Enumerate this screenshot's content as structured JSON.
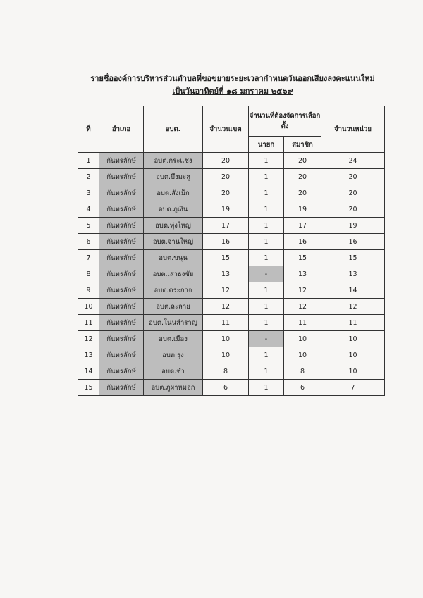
{
  "header": {
    "title": "รายชื่อองค์การบริหารส่วนตำบลที่ขอขยายระยะเวลากำหนดวันออกเสียงลงคะแนนใหม่",
    "subtitle": "เป็นวันอาทิตย์ที่ ๑๘ มกราคม ๒๕๖๙"
  },
  "table": {
    "headers": [
      "ที่",
      "อำเภอ",
      "อบต.",
      "จำนวนเขต",
      "จำนวนที่ต้องจัดการเลือกตั้ง",
      "จำนวนหน่วย"
    ],
    "subheaders": [
      "นายก",
      "สมาชิก"
    ],
    "rows": [
      [
        1,
        "กันทรลักษ์",
        "อบต.กระแชง",
        20,
        1,
        20,
        24
      ],
      [
        2,
        "กันทรลักษ์",
        "อบต.บึงมะลู",
        20,
        1,
        20,
        20
      ],
      [
        3,
        "กันทรลักษ์",
        "อบต.สังเม็ก",
        20,
        1,
        20,
        20
      ],
      [
        4,
        "กันทรลักษ์",
        "อบต.ภูเงิน",
        19,
        1,
        19,
        20
      ],
      [
        5,
        "กันทรลักษ์",
        "อบต.ทุ่งใหญ่",
        17,
        1,
        17,
        19
      ],
      [
        6,
        "กันทรลักษ์",
        "อบต.จานใหญ่",
        16,
        1,
        16,
        16
      ],
      [
        7,
        "กันทรลักษ์",
        "อบต.ขนุน",
        15,
        1,
        15,
        15
      ],
      [
        8,
        "กันทรลักษ์",
        "อบต.เสาธงชัย",
        13,
        "-",
        13,
        13
      ],
      [
        9,
        "กันทรลักษ์",
        "อบต.ตระกาจ",
        12,
        1,
        12,
        14
      ],
      [
        10,
        "กันทรลักษ์",
        "อบต.ละลาย",
        12,
        1,
        12,
        12
      ],
      [
        11,
        "กันทรลักษ์",
        "อบต.โนนสำราญ",
        11,
        1,
        11,
        11
      ],
      [
        12,
        "กันทรลักษ์",
        "อบต.เมือง",
        10,
        "-",
        10,
        10
      ],
      [
        13,
        "กันทรลักษ์",
        "อบต.รุง",
        10,
        1,
        10,
        10
      ],
      [
        14,
        "กันทรลักษ์",
        "อบต.ชำ",
        8,
        1,
        8,
        10
      ],
      [
        15,
        "กันทรลักษ์",
        "อบต.ภูผาหมอก",
        6,
        1,
        6,
        7
      ]
    ]
  }
}
